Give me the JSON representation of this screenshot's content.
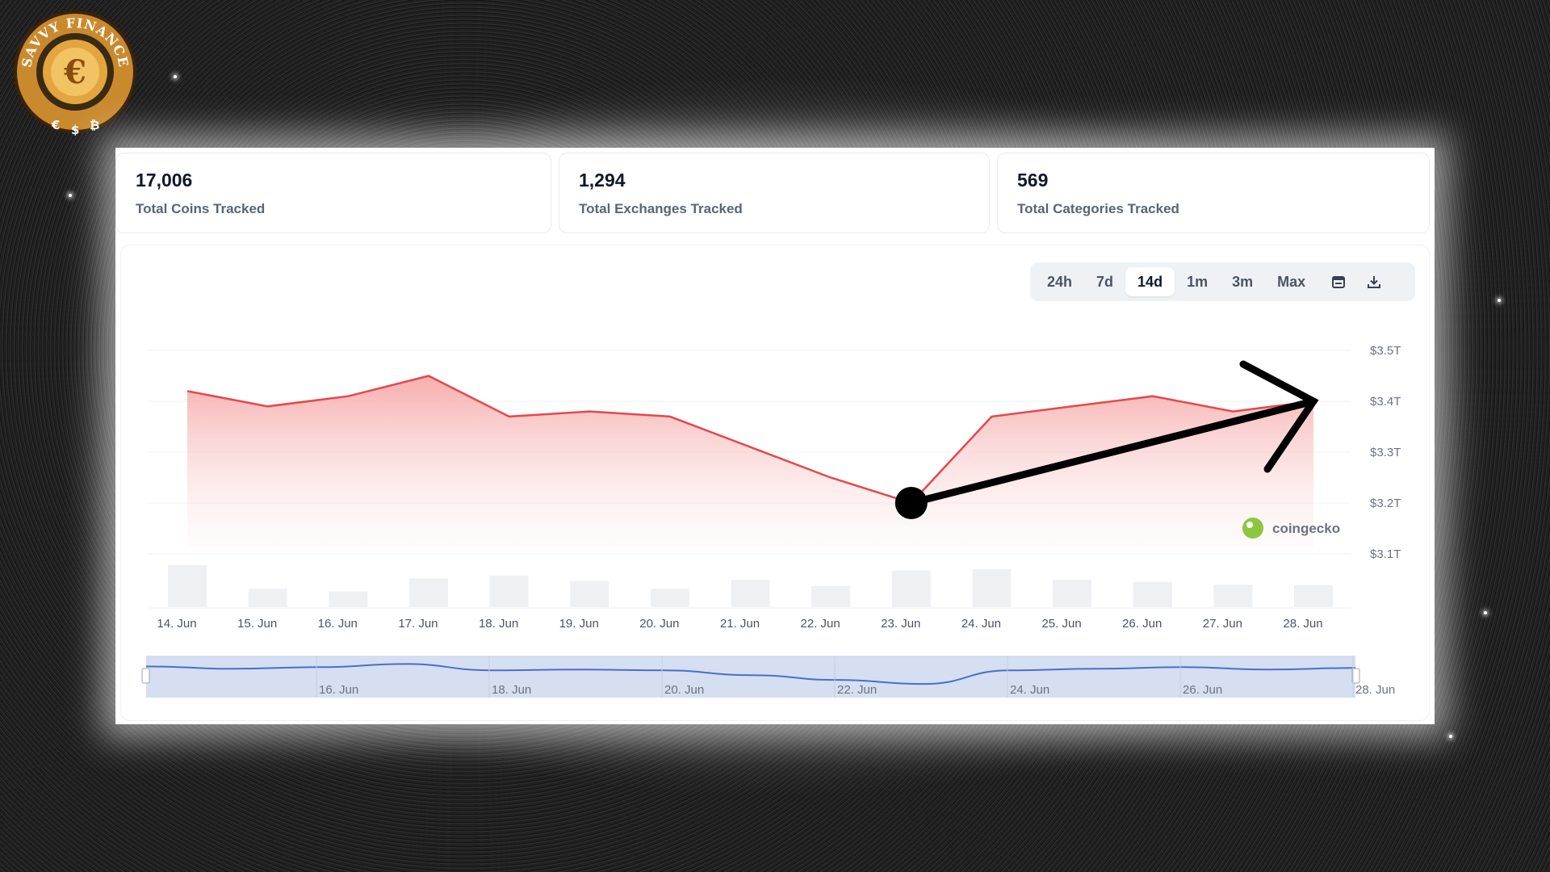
{
  "brand": {
    "logo_text": "SAVVY FINANCE",
    "logo_symbols": [
      "€",
      "$",
      "₿"
    ]
  },
  "stats": [
    {
      "value": "17,006",
      "label": "Total Coins Tracked"
    },
    {
      "value": "1,294",
      "label": "Total Exchanges Tracked"
    },
    {
      "value": "569",
      "label": "Total Categories Tracked"
    }
  ],
  "timeframes": {
    "options": [
      "24h",
      "7d",
      "14d",
      "1m",
      "3m",
      "Max"
    ],
    "selected": "14d",
    "icons": [
      "calendar-icon",
      "download-icon"
    ]
  },
  "watermark": "coingecko",
  "colors": {
    "line": "#e5484d",
    "fill": "#f9c9c9",
    "volume": "#eef0f3",
    "navigator": "#d6def2",
    "navigator_line": "#4a6fc7",
    "arrow": "#000000"
  },
  "chart_data": {
    "type": "line",
    "categories": [
      "14. Jun",
      "15. Jun",
      "16. Jun",
      "17. Jun",
      "18. Jun",
      "19. Jun",
      "20. Jun",
      "21. Jun",
      "22. Jun",
      "23. Jun",
      "24. Jun",
      "25. Jun",
      "26. Jun",
      "27. Jun",
      "28. Jun"
    ],
    "series": [
      {
        "values": [
          3.42,
          3.39,
          3.41,
          3.45,
          3.37,
          3.38,
          3.37,
          3.31,
          3.25,
          3.2,
          3.37,
          3.39,
          3.41,
          3.38,
          3.4
        ]
      }
    ],
    "volume": [
      8.0,
      3.5,
      3.0,
      5.5,
      6.0,
      5.0,
      3.5,
      5.2,
      4.0,
      7.0,
      7.2,
      5.2,
      4.8,
      4.3,
      4.2
    ],
    "y_ticks": [
      "$3.1T",
      "$3.2T",
      "$3.3T",
      "$3.4T",
      "$3.5T"
    ],
    "ylim": [
      3.1,
      3.5
    ],
    "navigator_ticks": [
      "16. Jun",
      "18. Jun",
      "20. Jun",
      "22. Jun",
      "24. Jun",
      "26. Jun",
      "28. Jun"
    ],
    "annotation": "arrow from 23. Jun low to 28. Jun",
    "grid": true,
    "title": ""
  }
}
